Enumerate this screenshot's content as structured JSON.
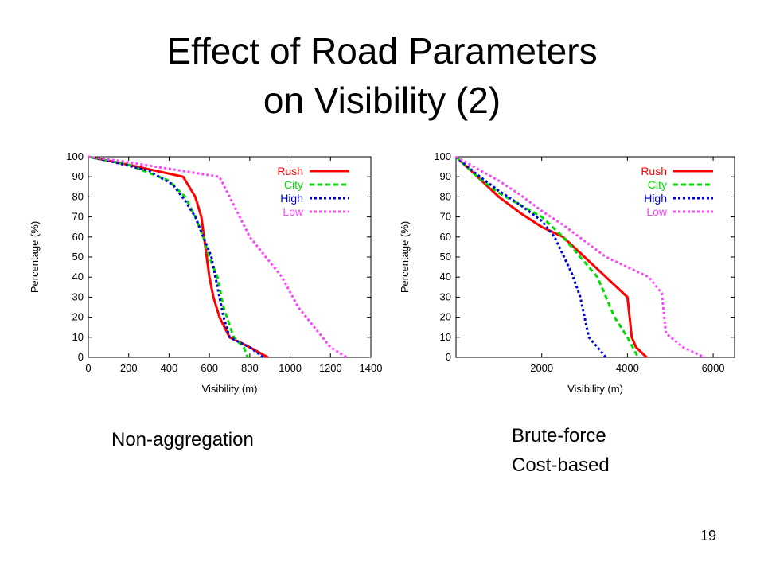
{
  "slide": {
    "title_line1": "Effect of Road Parameters",
    "title_line2": "on Visibility (2)",
    "caption_left": "Non-aggregation",
    "caption_right_line1": "Brute-force",
    "caption_right_line2": "Cost-based",
    "page_number": "19"
  },
  "chart_data": [
    {
      "type": "line",
      "title": "",
      "xlabel": "Visibility (m)",
      "ylabel": "Percentage (%)",
      "xlim": [
        0,
        1400
      ],
      "ylim": [
        0,
        100
      ],
      "xticks": [
        0,
        200,
        400,
        600,
        800,
        1000,
        1200,
        1400
      ],
      "yticks": [
        0,
        10,
        20,
        30,
        40,
        50,
        60,
        70,
        80,
        90,
        100
      ],
      "grid": false,
      "legend_position": "top-right",
      "series": [
        {
          "name": "Rush",
          "color": "#ff0000",
          "dash": "solid",
          "x": [
            0,
            200,
            470,
            530,
            560,
            580,
            600,
            620,
            650,
            700,
            800,
            890
          ],
          "y": [
            100,
            96,
            90,
            80,
            70,
            55,
            40,
            30,
            20,
            10,
            5,
            0
          ]
        },
        {
          "name": "City",
          "color": "#00dd00",
          "dash": "dashed",
          "x": [
            0,
            200,
            400,
            480,
            530,
            570,
            600,
            640,
            670,
            720,
            770,
            790
          ],
          "y": [
            100,
            96,
            88,
            80,
            70,
            60,
            50,
            40,
            25,
            10,
            5,
            0
          ]
        },
        {
          "name": "High",
          "color": "#0000dd",
          "dash": "dotted",
          "x": [
            0,
            100,
            300,
            420,
            480,
            530,
            570,
            610,
            640,
            670,
            700,
            800,
            870
          ],
          "y": [
            100,
            98,
            93,
            86,
            78,
            70,
            60,
            50,
            35,
            20,
            10,
            5,
            0
          ]
        },
        {
          "name": "Low",
          "color": "#ff44ff",
          "dash": "dotted",
          "x": [
            0,
            150,
            400,
            650,
            700,
            800,
            880,
            960,
            1040,
            1120,
            1200,
            1280
          ],
          "y": [
            100,
            98,
            94,
            90,
            80,
            60,
            50,
            40,
            25,
            15,
            5,
            0
          ]
        }
      ]
    },
    {
      "type": "line",
      "title": "",
      "xlabel": "Visibility (m)",
      "ylabel": "Percentage (%)",
      "xlim": [
        0,
        6500
      ],
      "ylim": [
        0,
        100
      ],
      "xticks": [
        2000,
        4000,
        6000
      ],
      "yticks": [
        0,
        10,
        20,
        30,
        40,
        50,
        60,
        70,
        80,
        90,
        100
      ],
      "grid": false,
      "legend_position": "top-right",
      "series": [
        {
          "name": "Rush",
          "color": "#ff0000",
          "dash": "solid",
          "x": [
            0,
            500,
            1000,
            1500,
            2000,
            2500,
            3000,
            3500,
            4000,
            4100,
            4200,
            4450
          ],
          "y": [
            100,
            90,
            80,
            72,
            65,
            60,
            50,
            40,
            30,
            10,
            5,
            0
          ]
        },
        {
          "name": "City",
          "color": "#00dd00",
          "dash": "dashed",
          "x": [
            0,
            500,
            1000,
            1500,
            2000,
            2500,
            2900,
            3300,
            3700,
            4000,
            4250
          ],
          "y": [
            100,
            90,
            82,
            76,
            70,
            60,
            50,
            40,
            20,
            10,
            0
          ]
        },
        {
          "name": "High",
          "color": "#0000dd",
          "dash": "dotted",
          "x": [
            0,
            500,
            1000,
            1500,
            2000,
            2300,
            2700,
            2900,
            3100,
            3300,
            3500
          ],
          "y": [
            100,
            91,
            83,
            76,
            68,
            60,
            42,
            30,
            10,
            5,
            0
          ]
        },
        {
          "name": "Low",
          "color": "#ff44ff",
          "dash": "dotted",
          "x": [
            0,
            500,
            1000,
            1500,
            2000,
            2500,
            3000,
            3500,
            4000,
            4500,
            4800,
            4900,
            5300,
            5800
          ],
          "y": [
            100,
            94,
            88,
            81,
            73,
            66,
            58,
            50,
            45,
            40,
            32,
            12,
            5,
            0
          ]
        }
      ]
    }
  ]
}
